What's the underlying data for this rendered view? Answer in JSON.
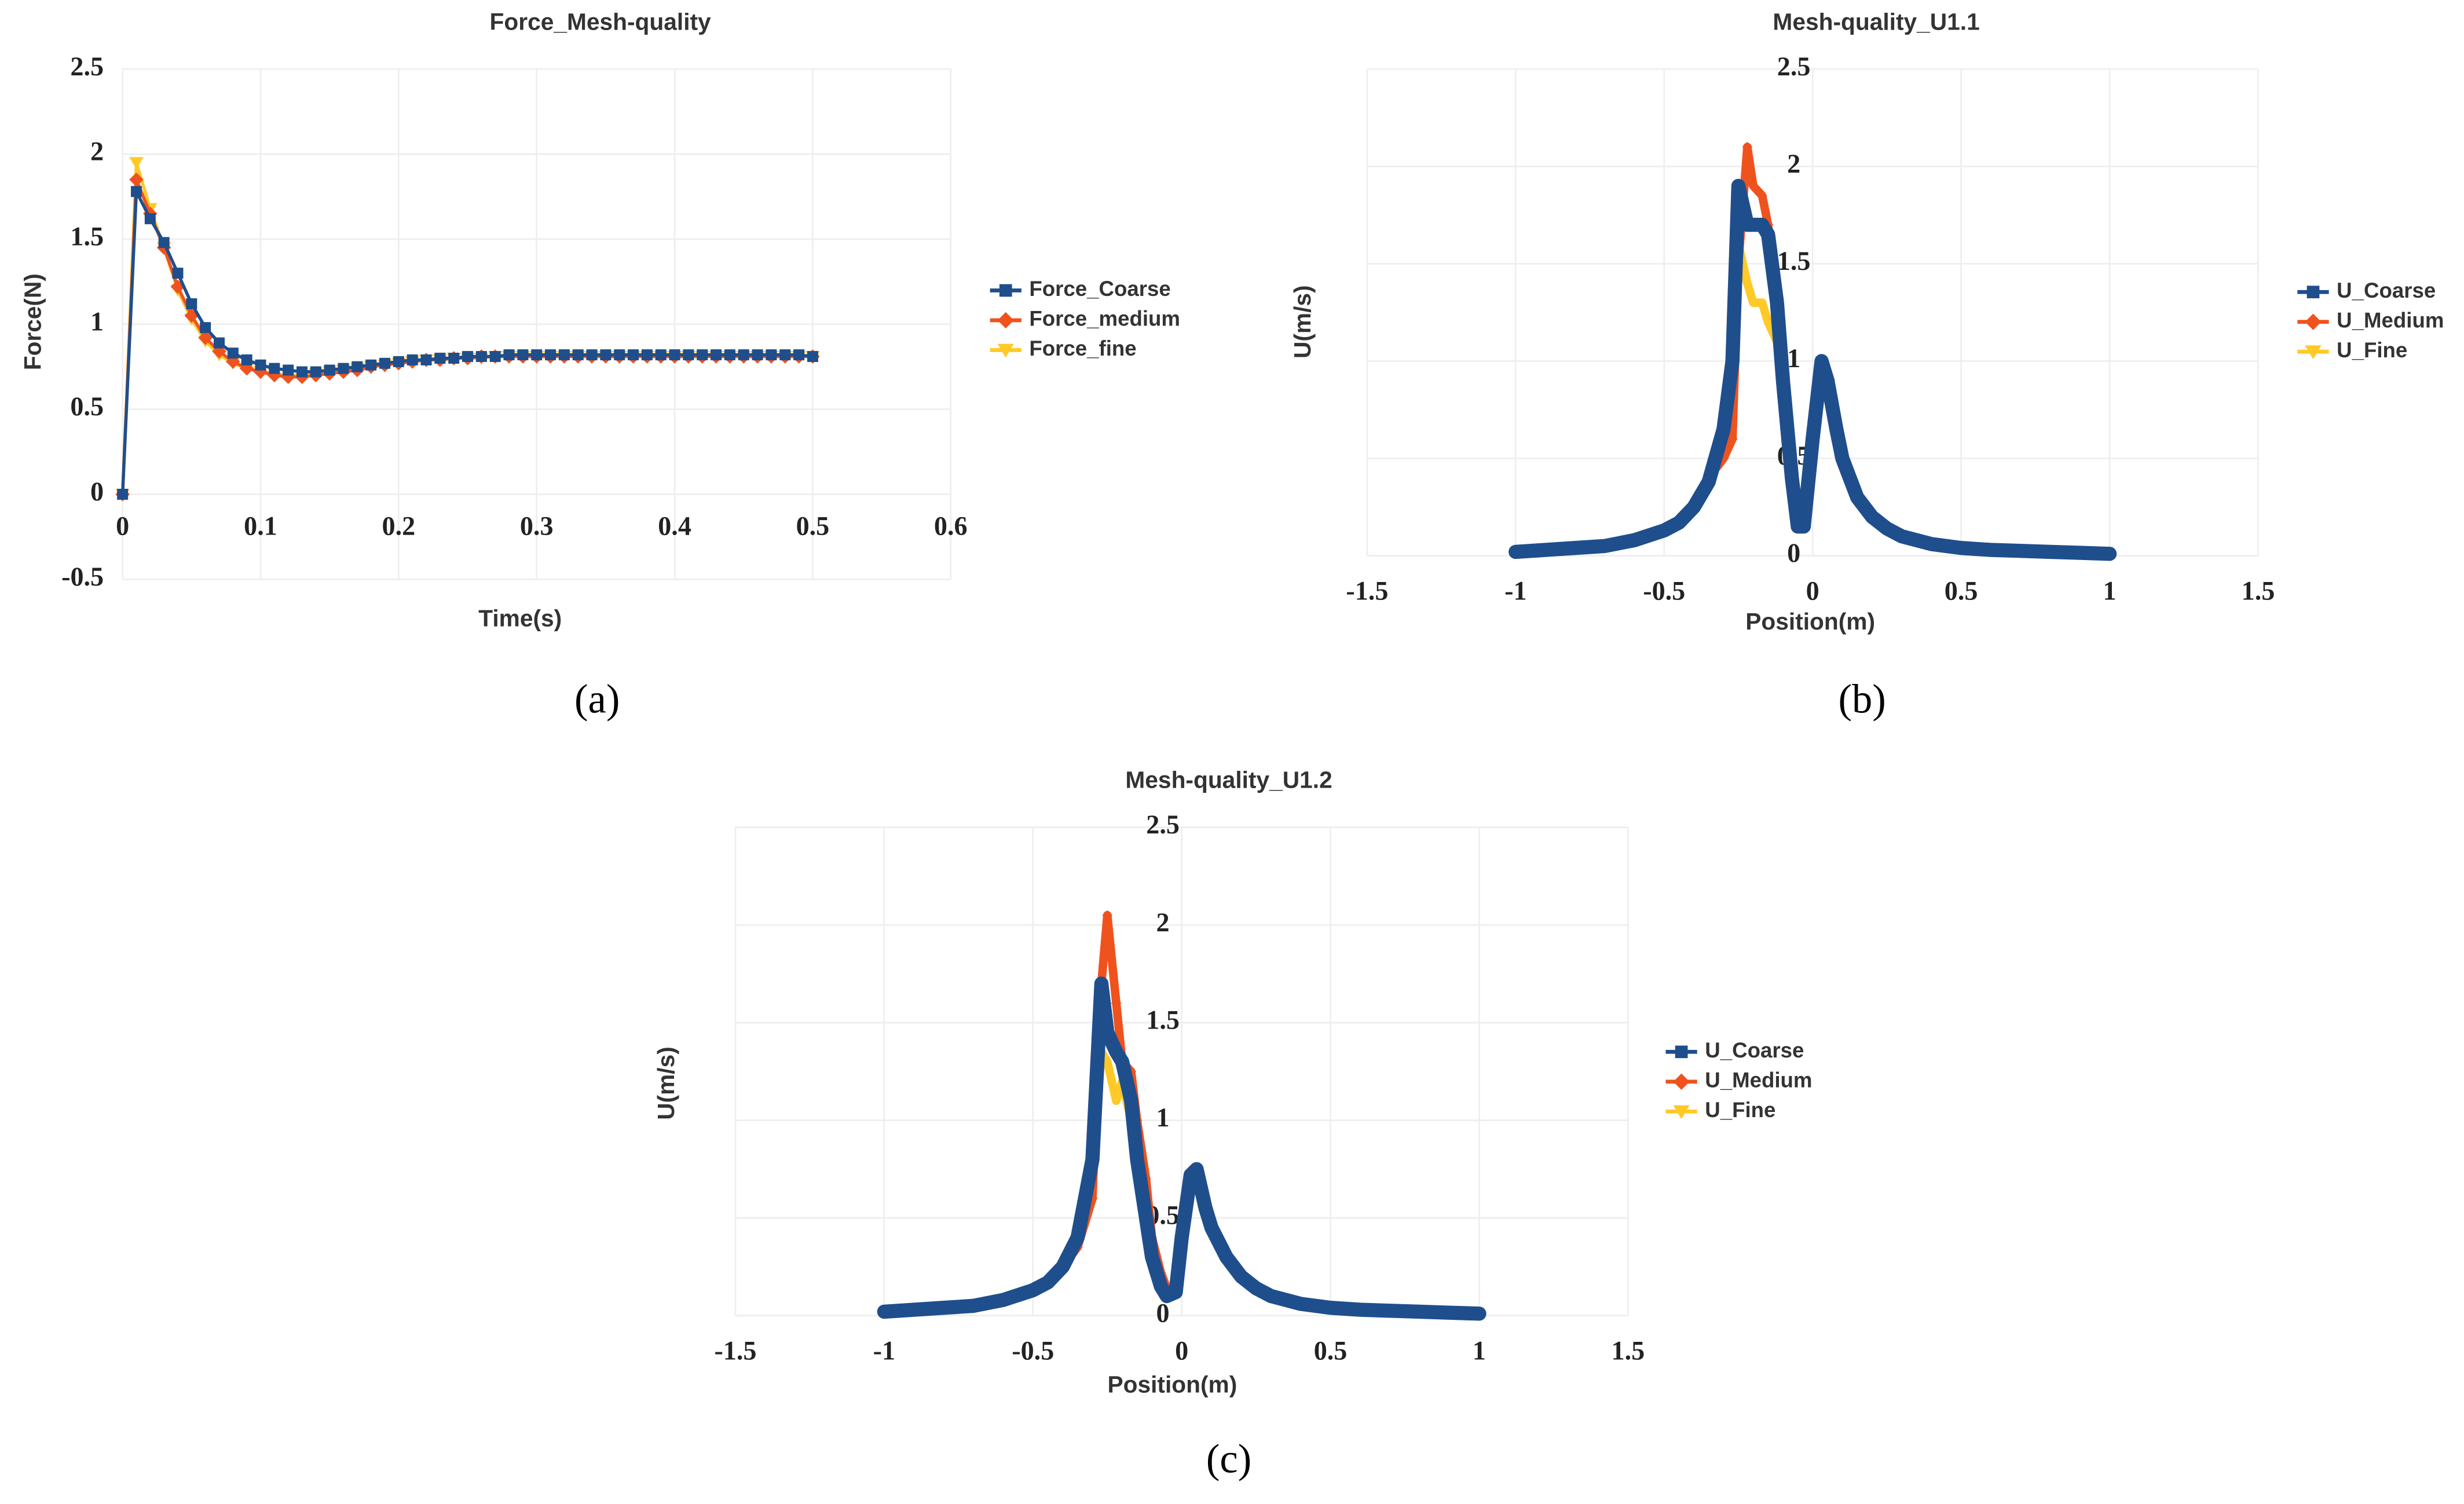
{
  "captions": [
    "(a)",
    "(b)",
    "(c)"
  ],
  "chart_data": [
    {
      "type": "line",
      "title": "Force_Mesh-quality",
      "x_label": "Time(s)",
      "y_label": "Force(N)",
      "xlim": [
        0,
        0.6
      ],
      "ylim": [
        -0.5,
        2.5
      ],
      "xticks": [
        0,
        0.1,
        0.2,
        0.3,
        0.4,
        0.5,
        0.6
      ],
      "yticks": [
        -0.5,
        0,
        0.5,
        1,
        1.5,
        2,
        2.5
      ],
      "grid": true,
      "x": [
        0,
        0.01,
        0.02,
        0.03,
        0.04,
        0.05,
        0.06,
        0.07,
        0.08,
        0.09,
        0.1,
        0.11,
        0.12,
        0.13,
        0.14,
        0.15,
        0.16,
        0.17,
        0.18,
        0.19,
        0.2,
        0.21,
        0.22,
        0.23,
        0.24,
        0.25,
        0.26,
        0.27,
        0.28,
        0.29,
        0.3,
        0.31,
        0.32,
        0.33,
        0.34,
        0.35,
        0.36,
        0.37,
        0.38,
        0.39,
        0.4,
        0.41,
        0.42,
        0.43,
        0.44,
        0.45,
        0.46,
        0.47,
        0.48,
        0.49,
        0.5
      ],
      "series": [
        {
          "name": "Force_fine",
          "color": "#ffc926",
          "marker": "triangle",
          "values": [
            0,
            1.95,
            1.68,
            1.45,
            1.2,
            1.03,
            0.9,
            0.82,
            0.77,
            0.74,
            0.72,
            0.71,
            0.7,
            0.7,
            0.71,
            0.72,
            0.73,
            0.74,
            0.75,
            0.76,
            0.77,
            0.78,
            0.79,
            0.79,
            0.8,
            0.8,
            0.8,
            0.81,
            0.81,
            0.81,
            0.81,
            0.81,
            0.81,
            0.81,
            0.81,
            0.81,
            0.81,
            0.81,
            0.81,
            0.81,
            0.81,
            0.81,
            0.81,
            0.81,
            0.81,
            0.81,
            0.81,
            0.81,
            0.81,
            0.81,
            0.81
          ]
        },
        {
          "name": "Force_medium",
          "color": "#f0521e",
          "marker": "diamond",
          "values": [
            0,
            1.85,
            1.65,
            1.45,
            1.22,
            1.05,
            0.92,
            0.84,
            0.78,
            0.74,
            0.72,
            0.7,
            0.69,
            0.69,
            0.7,
            0.71,
            0.72,
            0.73,
            0.75,
            0.76,
            0.77,
            0.78,
            0.79,
            0.79,
            0.8,
            0.8,
            0.81,
            0.81,
            0.81,
            0.81,
            0.81,
            0.81,
            0.81,
            0.81,
            0.81,
            0.81,
            0.81,
            0.81,
            0.81,
            0.81,
            0.81,
            0.81,
            0.81,
            0.81,
            0.81,
            0.81,
            0.81,
            0.81,
            0.81,
            0.81,
            0.81
          ]
        },
        {
          "name": "Force_Coarse",
          "color": "#1f4e8c",
          "marker": "square",
          "values": [
            0,
            1.78,
            1.62,
            1.48,
            1.3,
            1.12,
            0.98,
            0.89,
            0.83,
            0.79,
            0.76,
            0.74,
            0.73,
            0.72,
            0.72,
            0.73,
            0.74,
            0.75,
            0.76,
            0.77,
            0.78,
            0.79,
            0.79,
            0.8,
            0.8,
            0.81,
            0.81,
            0.81,
            0.82,
            0.82,
            0.82,
            0.82,
            0.82,
            0.82,
            0.82,
            0.82,
            0.82,
            0.82,
            0.82,
            0.82,
            0.82,
            0.82,
            0.82,
            0.82,
            0.82,
            0.82,
            0.82,
            0.82,
            0.82,
            0.82,
            0.81
          ]
        }
      ],
      "legend_order": [
        2,
        1,
        0
      ]
    },
    {
      "type": "line",
      "title": "Mesh-quality_U1.1",
      "x_label": "Position(m)",
      "y_label": "U(m/s)",
      "xlim": [
        -1.5,
        1.5
      ],
      "ylim": [
        0,
        2.5
      ],
      "xticks": [
        -1.5,
        -1,
        -0.5,
        0,
        0.5,
        1,
        1.5
      ],
      "yticks": [
        0,
        0.5,
        1,
        1.5,
        2,
        2.5
      ],
      "grid": true,
      "x": [
        -1,
        -0.9,
        -0.8,
        -0.7,
        -0.6,
        -0.5,
        -0.45,
        -0.4,
        -0.35,
        -0.3,
        -0.27,
        -0.25,
        -0.22,
        -0.2,
        -0.17,
        -0.15,
        -0.12,
        -0.1,
        -0.07,
        -0.05,
        -0.03,
        0,
        0.03,
        0.05,
        0.08,
        0.1,
        0.15,
        0.2,
        0.25,
        0.3,
        0.4,
        0.5,
        0.6,
        0.7,
        0.8,
        0.9,
        1
      ],
      "series": [
        {
          "name": "U_Fine",
          "color": "#ffc926",
          "marker": "triangle",
          "values": [
            0.02,
            0.03,
            0.04,
            0.05,
            0.08,
            0.13,
            0.17,
            0.25,
            0.38,
            0.6,
            0.9,
            1.6,
            1.4,
            1.3,
            1.3,
            1.2,
            1.1,
            0.85,
            0.4,
            0.15,
            0.15,
            0.6,
            1.0,
            0.9,
            0.65,
            0.5,
            0.3,
            0.2,
            0.14,
            0.1,
            0.06,
            0.04,
            0.03,
            0.025,
            0.02,
            0.015,
            0.01
          ]
        },
        {
          "name": "U_Medium",
          "color": "#f0521e",
          "marker": "diamond",
          "values": [
            0.02,
            0.03,
            0.04,
            0.05,
            0.08,
            0.13,
            0.17,
            0.25,
            0.4,
            0.5,
            0.6,
            1.5,
            2.1,
            1.9,
            1.85,
            1.7,
            1.3,
            0.9,
            0.45,
            0.2,
            0.15,
            0.6,
            1.0,
            0.9,
            0.65,
            0.5,
            0.3,
            0.2,
            0.14,
            0.1,
            0.06,
            0.04,
            0.03,
            0.025,
            0.02,
            0.015,
            0.01
          ]
        },
        {
          "name": "U_Coarse",
          "color": "#1f4e8c",
          "marker": "square",
          "values": [
            0.02,
            0.03,
            0.04,
            0.05,
            0.08,
            0.13,
            0.17,
            0.25,
            0.38,
            0.65,
            1.0,
            1.9,
            1.7,
            1.7,
            1.7,
            1.65,
            1.3,
            0.9,
            0.4,
            0.15,
            0.15,
            0.6,
            1.0,
            0.9,
            0.65,
            0.5,
            0.3,
            0.2,
            0.14,
            0.1,
            0.06,
            0.04,
            0.03,
            0.025,
            0.02,
            0.015,
            0.01
          ]
        }
      ],
      "legend_order": [
        2,
        1,
        0
      ]
    },
    {
      "type": "line",
      "title": "Mesh-quality_U1.2",
      "x_label": "Position(m)",
      "y_label": "U(m/s)",
      "xlim": [
        -1.5,
        1.5
      ],
      "ylim": [
        0,
        2.5
      ],
      "xticks": [
        -1.5,
        -1,
        -0.5,
        0,
        0.5,
        1,
        1.5
      ],
      "yticks": [
        0,
        0.5,
        1,
        1.5,
        2,
        2.5
      ],
      "grid": true,
      "x": [
        -1,
        -0.9,
        -0.8,
        -0.7,
        -0.6,
        -0.5,
        -0.45,
        -0.4,
        -0.35,
        -0.3,
        -0.27,
        -0.25,
        -0.22,
        -0.2,
        -0.17,
        -0.15,
        -0.12,
        -0.1,
        -0.07,
        -0.05,
        -0.02,
        0,
        0.03,
        0.05,
        0.08,
        0.1,
        0.15,
        0.2,
        0.25,
        0.3,
        0.4,
        0.5,
        0.6,
        0.7,
        0.8,
        0.9,
        1
      ],
      "series": [
        {
          "name": "U_Fine",
          "color": "#ffc926",
          "marker": "triangle",
          "values": [
            0.02,
            0.03,
            0.04,
            0.05,
            0.08,
            0.13,
            0.17,
            0.25,
            0.4,
            0.75,
            1.35,
            1.3,
            1.1,
            1.2,
            1.0,
            0.8,
            0.55,
            0.35,
            0.2,
            0.12,
            0.12,
            0.4,
            0.72,
            0.75,
            0.55,
            0.45,
            0.3,
            0.2,
            0.14,
            0.1,
            0.06,
            0.04,
            0.03,
            0.025,
            0.02,
            0.015,
            0.01
          ]
        },
        {
          "name": "U_Medium",
          "color": "#f0521e",
          "marker": "diamond",
          "values": [
            0.02,
            0.03,
            0.04,
            0.05,
            0.08,
            0.13,
            0.17,
            0.25,
            0.35,
            0.6,
            1.7,
            2.05,
            1.6,
            1.3,
            1.25,
            1.0,
            0.7,
            0.4,
            0.22,
            0.14,
            0.12,
            0.4,
            0.72,
            0.75,
            0.55,
            0.45,
            0.3,
            0.2,
            0.14,
            0.1,
            0.06,
            0.04,
            0.03,
            0.025,
            0.02,
            0.015,
            0.01
          ]
        },
        {
          "name": "U_Coarse",
          "color": "#1f4e8c",
          "marker": "square",
          "values": [
            0.02,
            0.03,
            0.04,
            0.05,
            0.08,
            0.13,
            0.17,
            0.25,
            0.4,
            0.8,
            1.7,
            1.45,
            1.35,
            1.3,
            1.1,
            0.8,
            0.5,
            0.3,
            0.15,
            0.1,
            0.12,
            0.4,
            0.72,
            0.75,
            0.55,
            0.45,
            0.3,
            0.2,
            0.14,
            0.1,
            0.06,
            0.04,
            0.03,
            0.025,
            0.02,
            0.015,
            0.01
          ]
        }
      ],
      "legend_order": [
        2,
        1,
        0
      ]
    }
  ]
}
